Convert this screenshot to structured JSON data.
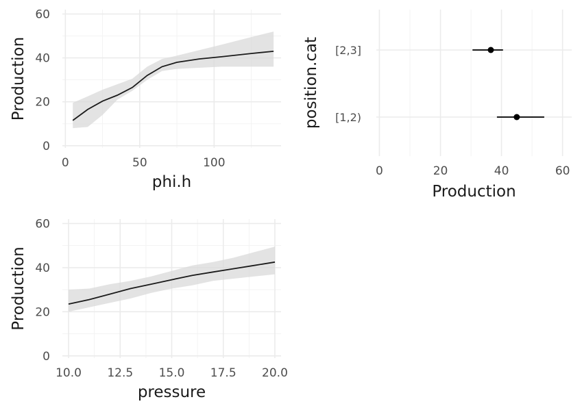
{
  "chart_data": [
    {
      "type": "line",
      "xlabel": "phi.h",
      "ylabel": "Production",
      "xlim": [
        -2,
        145
      ],
      "ylim": [
        -1,
        62
      ],
      "xticks": [
        0,
        50,
        100
      ],
      "xtick_labels": [
        "0",
        "50",
        "100"
      ],
      "yticks": [
        0,
        20,
        40,
        60
      ],
      "ytick_labels": [
        "0",
        "20",
        "40",
        "60"
      ],
      "x": [
        5,
        15,
        25,
        35,
        45,
        55,
        65,
        75,
        90,
        105,
        125,
        140
      ],
      "y": [
        11.5,
        16.5,
        20.3,
        23,
        26.5,
        32,
        36,
        38,
        39.5,
        40.5,
        42,
        43
      ],
      "lower": [
        8,
        8.5,
        14,
        21,
        25,
        30,
        34,
        35,
        35.5,
        36,
        36,
        36
      ],
      "upper": [
        19.5,
        22.5,
        25.5,
        28,
        30.5,
        36,
        39.5,
        41,
        43.5,
        46,
        49.5,
        52
      ]
    },
    {
      "type": "scatter",
      "xlabel": "Production",
      "ylabel": "position.cat",
      "xlim": [
        -1,
        63
      ],
      "xticks": [
        0,
        20,
        40,
        60
      ],
      "xtick_labels": [
        "0",
        "20",
        "40",
        "60"
      ],
      "categories": [
        "[1,2)",
        "[2,3]"
      ],
      "estimate": [
        45,
        36.5
      ],
      "lower": [
        38.5,
        30.5
      ],
      "upper": [
        54,
        40.5
      ]
    },
    {
      "type": "line",
      "xlabel": "pressure",
      "ylabel": "Production",
      "xlim": [
        9.7,
        20.3
      ],
      "ylim": [
        -1,
        62
      ],
      "xticks": [
        10,
        12.5,
        15,
        17.5,
        20
      ],
      "xtick_labels": [
        "10.0",
        "12.5",
        "15.0",
        "17.5",
        "20.0"
      ],
      "yticks": [
        0,
        20,
        40,
        60
      ],
      "ytick_labels": [
        "0",
        "20",
        "40",
        "60"
      ],
      "x": [
        10,
        11,
        12,
        13,
        14,
        15,
        16,
        17,
        18,
        19,
        20
      ],
      "y": [
        23.5,
        25.5,
        28,
        30.5,
        32.5,
        34.5,
        36.5,
        38,
        39.5,
        41,
        42.5
      ],
      "lower": [
        20,
        22,
        24,
        26,
        28.5,
        30.5,
        32,
        34,
        35,
        36,
        37
      ],
      "upper": [
        30,
        30.5,
        32.5,
        34,
        36,
        38.5,
        41,
        42.5,
        44.5,
        47,
        49.5
      ]
    }
  ]
}
